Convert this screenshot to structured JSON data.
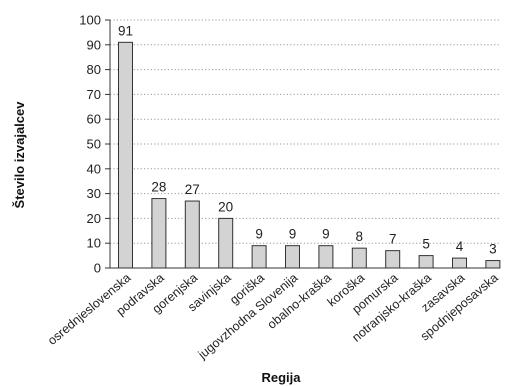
{
  "chart_data": {
    "type": "bar",
    "title": "",
    "xlabel": "Regija",
    "ylabel": "Število izvajalcev",
    "ylim": [
      0,
      100
    ],
    "yticks": [
      0,
      10,
      20,
      30,
      40,
      50,
      60,
      70,
      80,
      90,
      100
    ],
    "grid": "horizontal dotted",
    "categories": [
      "osrednjeslovenska",
      "podravska",
      "gorenjska",
      "savinjska",
      "goriška",
      "jugovzhodna Slovenija",
      "obalno-kraška",
      "koroška",
      "pomurska",
      "notranjsko-kraška",
      "zasavska",
      "spodnjeposavska"
    ],
    "values": [
      91,
      28,
      27,
      20,
      9,
      9,
      9,
      8,
      7,
      5,
      4,
      3
    ],
    "data_labels": [
      "91",
      "28",
      "27",
      "20",
      "9",
      "9",
      "9",
      "8",
      "7",
      "5",
      "4",
      "3"
    ],
    "colors": {
      "bar_fill": "#d3d3d3",
      "bar_stroke": "#333333",
      "grid": "#9a9a9a",
      "axis": "#333333"
    }
  }
}
